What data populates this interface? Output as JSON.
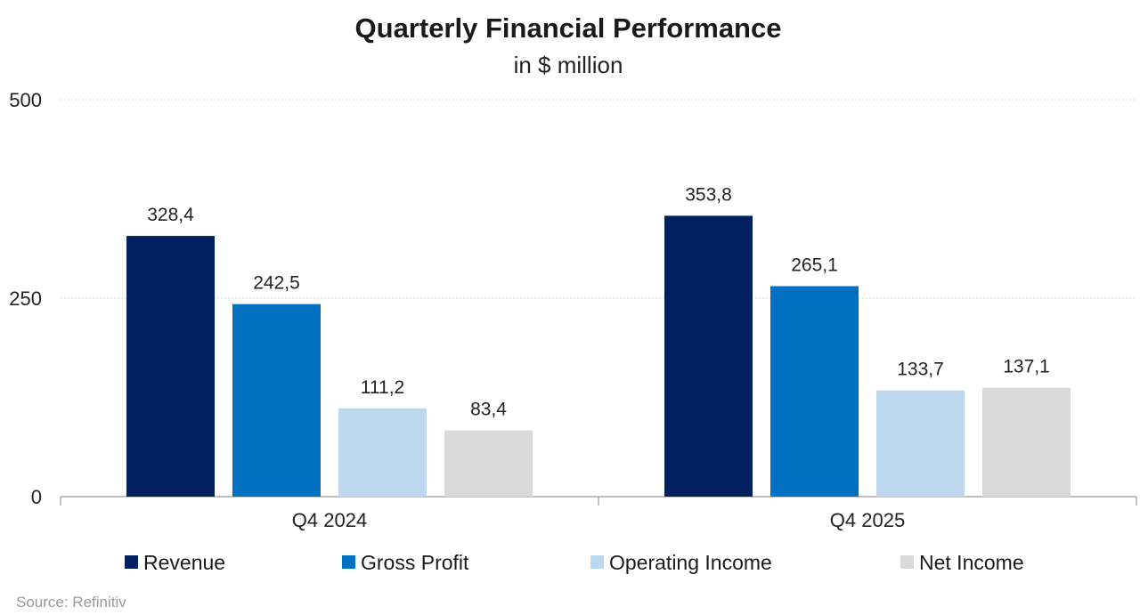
{
  "chart_data": {
    "type": "bar",
    "title": "Quarterly Financial Performance",
    "subtitle": "in $ million",
    "categories": [
      "Q4 2024",
      "Q4 2025"
    ],
    "series": [
      {
        "name": "Revenue",
        "color": "#002060",
        "values": [
          328.4,
          353.8
        ],
        "labels": [
          "328,4",
          "353,8"
        ]
      },
      {
        "name": "Gross Profit",
        "color": "#0070C0",
        "values": [
          242.5,
          265.1
        ],
        "labels": [
          "242,5",
          "265,1"
        ]
      },
      {
        "name": "Operating Income",
        "color": "#BDD7EE",
        "values": [
          111.2,
          133.7
        ],
        "labels": [
          "111,2",
          "133,7"
        ]
      },
      {
        "name": "Net Income",
        "color": "#D9D9D9",
        "values": [
          83.4,
          137.1
        ],
        "labels": [
          "83,4",
          "137,1"
        ]
      }
    ],
    "yticks": [
      {
        "value": 0,
        "label": "0"
      },
      {
        "value": 250,
        "label": "250"
      },
      {
        "value": 500,
        "label": "500"
      }
    ],
    "ylim": [
      0,
      500
    ],
    "xlabel": "",
    "ylabel": "",
    "grid": true,
    "legend": "bottom",
    "source": "Source: Refinitiv"
  }
}
